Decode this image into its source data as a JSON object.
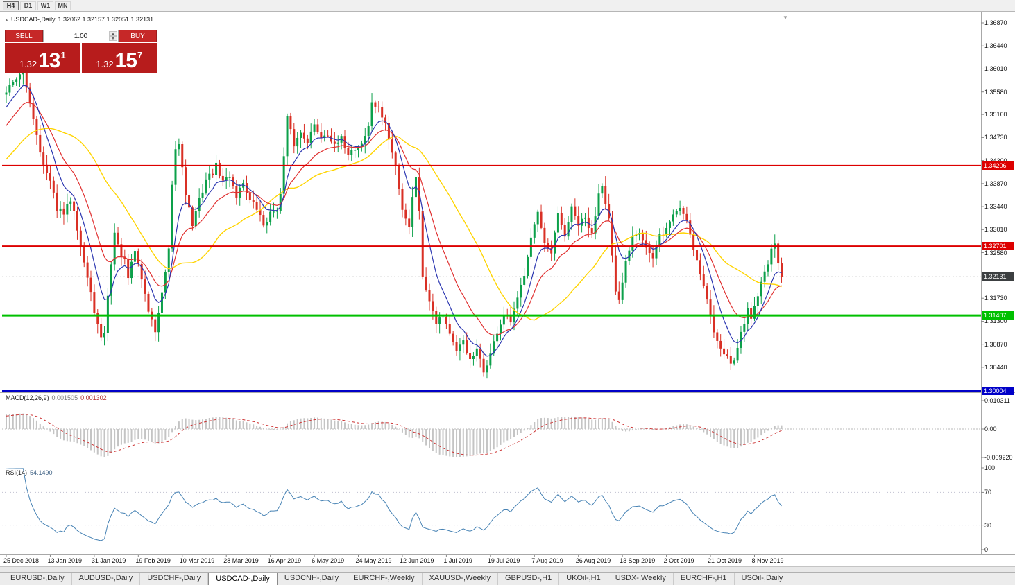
{
  "toolbar": {
    "timeframes": [
      "H4",
      "D1",
      "W1",
      "MN"
    ]
  },
  "icons": {
    "shift_marker": "▼"
  },
  "chart_header": {
    "collapse_icon": "▲",
    "title": "USDCAD-,Daily",
    "ohlc": "1.32062 1.32157 1.32051 1.32131"
  },
  "trade_panel": {
    "sell_label": "SELL",
    "buy_label": "BUY",
    "volume": "1.00",
    "spin_up": "▲",
    "spin_down": "▼",
    "sell_price": {
      "prefix": "1.32",
      "big": "13",
      "sup": "1"
    },
    "buy_price": {
      "prefix": "1.32",
      "big": "15",
      "sup": "7"
    }
  },
  "price_axis": {
    "labels": [
      "1.36870",
      "1.36440",
      "1.36010",
      "1.35580",
      "1.35160",
      "1.34730",
      "1.34300",
      "1.33870",
      "1.33440",
      "1.33010",
      "1.32580",
      "1.31730",
      "1.31300",
      "1.30870",
      "1.30440"
    ]
  },
  "hlines": [
    {
      "price": 1.34206,
      "label": "1.34206",
      "color": "#dd0000",
      "width": 2
    },
    {
      "price": 1.32701,
      "label": "1.32701",
      "color": "#dd0000",
      "width": 2
    },
    {
      "price": 1.31407,
      "label": "1.31407",
      "color": "#00c000",
      "width": 3
    },
    {
      "price": 1.30004,
      "label": "1.30004",
      "color": "#0000c8",
      "width": 3
    }
  ],
  "current_price": {
    "price": 1.32131,
    "label": "1.32131",
    "tag_color": "#3c3f41"
  },
  "macd": {
    "name": "MACD(12,26,9)",
    "value_main": "0.001505",
    "value_signal": "0.001302",
    "axis_labels": [
      "0.010311",
      "0.00",
      "-0.009220"
    ]
  },
  "rsi": {
    "name": "RSI(14)",
    "value": "54.1490",
    "axis_labels": [
      "100",
      "70",
      "30",
      "0"
    ],
    "levels": [
      70,
      30
    ]
  },
  "dates": [
    "25 Dec 2018",
    "13 Jan 2019",
    "31 Jan 2019",
    "19 Feb 2019",
    "10 Mar 2019",
    "28 Mar 2019",
    "16 Apr 2019",
    "6 May 2019",
    "24 May 2019",
    "12 Jun 2019",
    "1 Jul 2019",
    "19 Jul 2019",
    "7 Aug 2019",
    "26 Aug 2019",
    "13 Sep 2019",
    "2 Oct 2019",
    "21 Oct 2019",
    "8 Nov 2019"
  ],
  "tabs": {
    "active_index": 3,
    "items": [
      "EURUSD-,Daily",
      "AUDUSD-,Daily",
      "USDCHF-,Daily",
      "USDCAD-,Daily",
      "USDCNH-,Daily",
      "EURCHF-,Weekly",
      "XAUUSD-,Weekly",
      "GBPUSD-,H1",
      "UKOil-,H1",
      "USDX-,Weekly",
      "EURCHF-,H1",
      "USOil-,Daily"
    ],
    "separator": "|"
  },
  "chart_data": {
    "type": "candlestick",
    "symbol": "USDCAD-",
    "timeframe": "Daily",
    "candle_count": 230,
    "date_label_stride": 13,
    "last_close": 1.32131,
    "colors": {
      "up": "#0ca04a",
      "down": "#d93025",
      "ma_fast_blue": "#2a35b0",
      "ma_mid_red": "#e03030",
      "ma_slow_yellow": "#ffd400",
      "macd_hist": "#c4c4c4",
      "macd_signal": "#cc3333",
      "rsi_line": "#4682b4"
    },
    "prehistory_anchors": [
      [
        -40,
        1.33
      ],
      [
        -30,
        1.3345
      ],
      [
        -20,
        1.3402
      ],
      [
        -10,
        1.347
      ],
      [
        -5,
        1.352
      ],
      [
        -1,
        1.3552
      ]
    ],
    "anchors": [
      [
        0,
        1.356
      ],
      [
        2,
        1.358
      ],
      [
        5,
        1.3592
      ],
      [
        7,
        1.354
      ],
      [
        9,
        1.348
      ],
      [
        11,
        1.342
      ],
      [
        13,
        1.339
      ],
      [
        15,
        1.334
      ],
      [
        17,
        1.333
      ],
      [
        19,
        1.3358
      ],
      [
        20,
        1.334
      ],
      [
        22,
        1.327
      ],
      [
        24,
        1.321
      ],
      [
        26,
        1.315
      ],
      [
        28,
        1.3095
      ],
      [
        29,
        1.311
      ],
      [
        31,
        1.324
      ],
      [
        32,
        1.3295
      ],
      [
        33,
        1.327
      ],
      [
        35,
        1.324
      ],
      [
        36,
        1.321
      ],
      [
        38,
        1.3262
      ],
      [
        40,
        1.321
      ],
      [
        42,
        1.315
      ],
      [
        44,
        1.3112
      ],
      [
        46,
        1.318
      ],
      [
        48,
        1.326
      ],
      [
        49,
        1.338
      ],
      [
        50,
        1.3452
      ],
      [
        51,
        1.346
      ],
      [
        52,
        1.342
      ],
      [
        53,
        1.337
      ],
      [
        55,
        1.331
      ],
      [
        57,
        1.3355
      ],
      [
        59,
        1.3395
      ],
      [
        61,
        1.3408
      ],
      [
        62,
        1.342
      ],
      [
        64,
        1.339
      ],
      [
        66,
        1.3402
      ],
      [
        68,
        1.3365
      ],
      [
        70,
        1.339
      ],
      [
        72,
        1.3355
      ],
      [
        74,
        1.334
      ],
      [
        76,
        1.331
      ],
      [
        78,
        1.333
      ],
      [
        80,
        1.3342
      ],
      [
        81,
        1.3365
      ],
      [
        83,
        1.3508
      ],
      [
        85,
        1.346
      ],
      [
        87,
        1.3482
      ],
      [
        89,
        1.3468
      ],
      [
        91,
        1.3495
      ],
      [
        93,
        1.3475
      ],
      [
        95,
        1.3482
      ],
      [
        97,
        1.3455
      ],
      [
        99,
        1.347
      ],
      [
        101,
        1.3445
      ],
      [
        103,
        1.3452
      ],
      [
        105,
        1.3462
      ],
      [
        107,
        1.3492
      ],
      [
        108,
        1.354
      ],
      [
        110,
        1.3525
      ],
      [
        112,
        1.35
      ],
      [
        113,
        1.3468
      ],
      [
        115,
        1.342
      ],
      [
        117,
        1.334
      ],
      [
        119,
        1.3308
      ],
      [
        120,
        1.336
      ],
      [
        121,
        1.3402
      ],
      [
        122,
        1.334
      ],
      [
        123,
        1.321
      ],
      [
        125,
        1.3172
      ],
      [
        127,
        1.313
      ],
      [
        129,
        1.3142
      ],
      [
        131,
        1.3108
      ],
      [
        133,
        1.307
      ],
      [
        135,
        1.3095
      ],
      [
        137,
        1.3055
      ],
      [
        139,
        1.3075
      ],
      [
        141,
        1.3035
      ],
      [
        143,
        1.3068
      ],
      [
        145,
        1.311
      ],
      [
        147,
        1.314
      ],
      [
        149,
        1.3128
      ],
      [
        151,
        1.317
      ],
      [
        153,
        1.322
      ],
      [
        155,
        1.329
      ],
      [
        157,
        1.3332
      ],
      [
        159,
        1.327
      ],
      [
        161,
        1.3255
      ],
      [
        163,
        1.3328
      ],
      [
        165,
        1.329
      ],
      [
        167,
        1.334
      ],
      [
        169,
        1.331
      ],
      [
        171,
        1.3322
      ],
      [
        173,
        1.329
      ],
      [
        175,
        1.337
      ],
      [
        176,
        1.3388
      ],
      [
        178,
        1.332
      ],
      [
        180,
        1.318
      ],
      [
        181,
        1.3165
      ],
      [
        183,
        1.324
      ],
      [
        185,
        1.3292
      ],
      [
        187,
        1.33
      ],
      [
        189,
        1.3268
      ],
      [
        191,
        1.3245
      ],
      [
        193,
        1.329
      ],
      [
        195,
        1.3302
      ],
      [
        197,
        1.333
      ],
      [
        199,
        1.3342
      ],
      [
        201,
        1.332
      ],
      [
        203,
        1.3268
      ],
      [
        205,
        1.322
      ],
      [
        207,
        1.317
      ],
      [
        209,
        1.311
      ],
      [
        211,
        1.3085
      ],
      [
        213,
        1.306
      ],
      [
        215,
        1.3052
      ],
      [
        217,
        1.311
      ],
      [
        219,
        1.315
      ],
      [
        220,
        1.314
      ],
      [
        222,
        1.318
      ],
      [
        224,
        1.3222
      ],
      [
        226,
        1.326
      ],
      [
        227,
        1.3272
      ],
      [
        228,
        1.3236
      ],
      [
        229,
        1.32131
      ]
    ]
  }
}
